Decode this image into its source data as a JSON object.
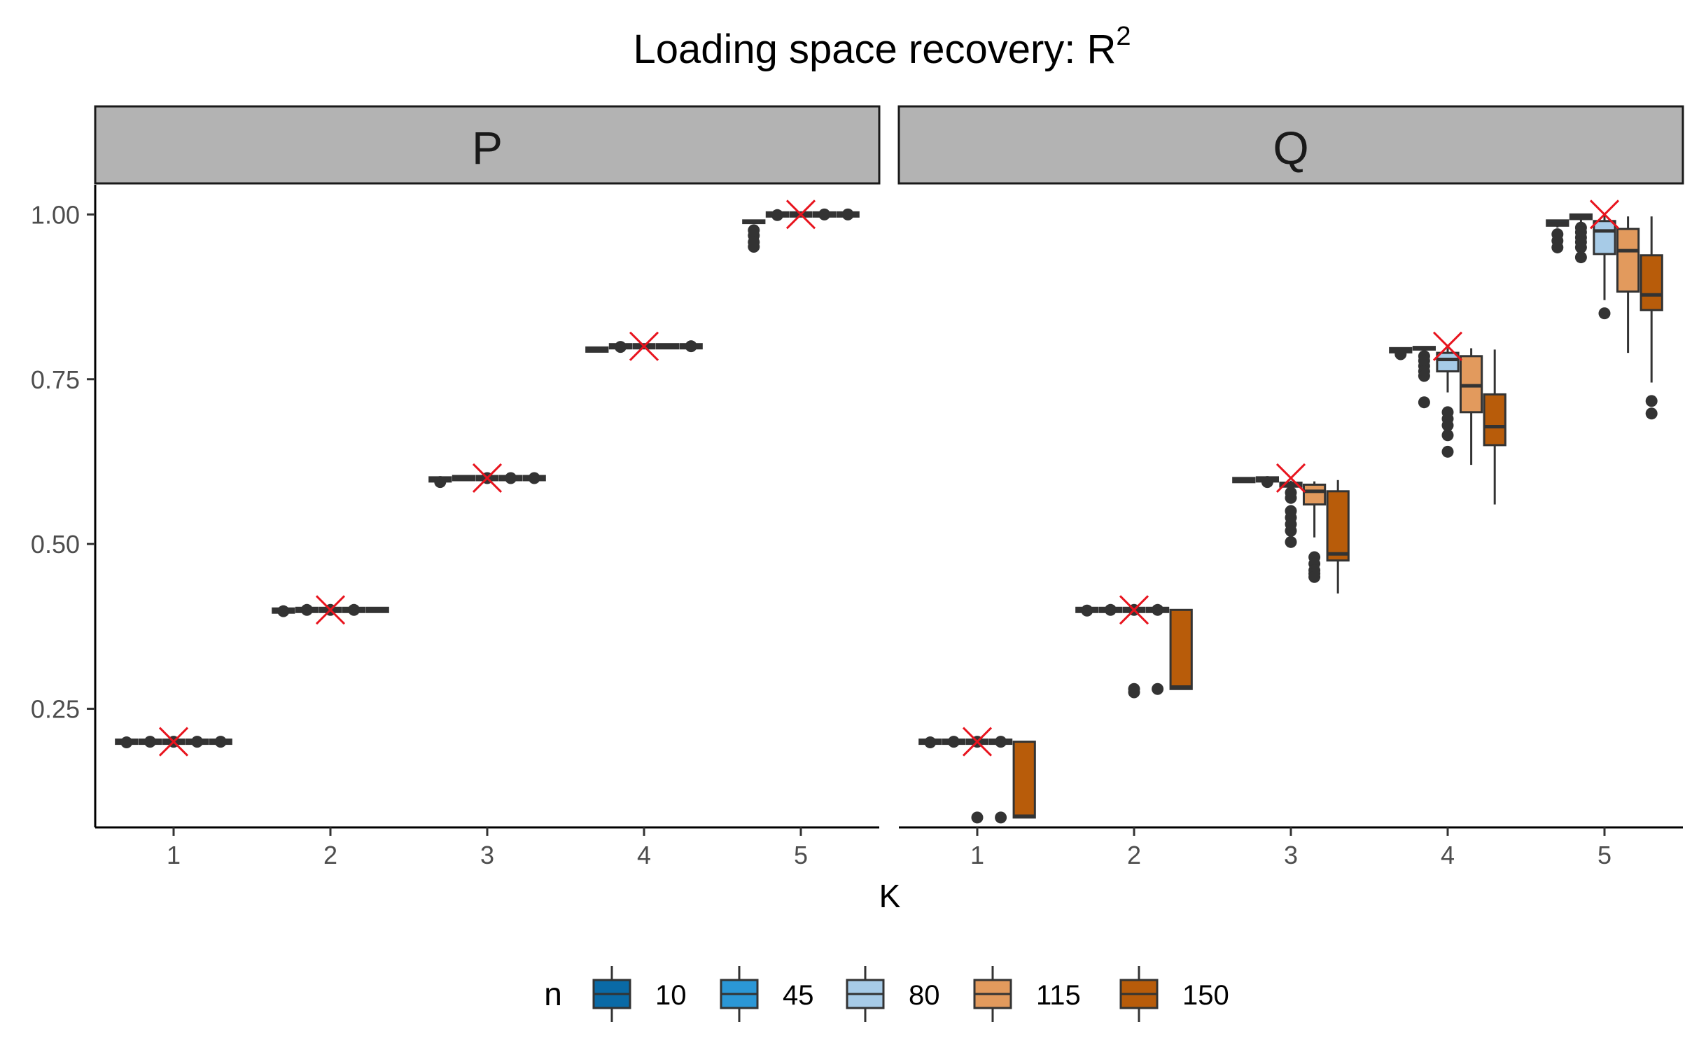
{
  "chart_data": {
    "type": "boxplot",
    "title": "Loading space recovery: R",
    "title_superscript": "2",
    "xlabel": "K",
    "ylabel": "",
    "ylim": [
      0.07,
      1.045
    ],
    "y_ticks": [
      0.25,
      0.5,
      0.75,
      1.0
    ],
    "y_tick_labels": [
      "0.25",
      "0.50",
      "0.75",
      "1.00"
    ],
    "categories": [
      "1",
      "2",
      "3",
      "4",
      "5"
    ],
    "grid": false,
    "legend": {
      "title": "n",
      "position": "bottom",
      "entries": [
        {
          "label": "10",
          "color": "#0a6aa6"
        },
        {
          "label": "45",
          "color": "#2b97d6"
        },
        {
          "label": "80",
          "color": "#a7cbe7"
        },
        {
          "label": "115",
          "color": "#e29a5d"
        },
        {
          "label": "150",
          "color": "#b85c0a"
        }
      ]
    },
    "truth_marker": {
      "shape": "x",
      "color": "#e8141e"
    },
    "panels": [
      {
        "strip": "P",
        "truth": [
          {
            "k": "1",
            "value": 0.2
          },
          {
            "k": "2",
            "value": 0.4
          },
          {
            "k": "3",
            "value": 0.6
          },
          {
            "k": "4",
            "value": 0.8
          },
          {
            "k": "5",
            "value": 1.0
          }
        ],
        "boxes": [
          {
            "k": "1",
            "n": "10",
            "q1": 0.199,
            "median": 0.2,
            "q3": 0.201,
            "whisker_low": 0.199,
            "whisker_high": 0.201,
            "outliers": [
              0.199
            ]
          },
          {
            "k": "1",
            "n": "45",
            "q1": 0.199,
            "median": 0.2,
            "q3": 0.201,
            "whisker_low": 0.199,
            "whisker_high": 0.201,
            "outliers": [
              0.2
            ]
          },
          {
            "k": "1",
            "n": "80",
            "q1": 0.199,
            "median": 0.2,
            "q3": 0.201,
            "whisker_low": 0.199,
            "whisker_high": 0.201,
            "outliers": [
              0.2
            ]
          },
          {
            "k": "1",
            "n": "115",
            "q1": 0.199,
            "median": 0.2,
            "q3": 0.201,
            "whisker_low": 0.199,
            "whisker_high": 0.201,
            "outliers": [
              0.2
            ]
          },
          {
            "k": "1",
            "n": "150",
            "q1": 0.199,
            "median": 0.2,
            "q3": 0.201,
            "whisker_low": 0.199,
            "whisker_high": 0.201,
            "outliers": [
              0.2
            ]
          },
          {
            "k": "2",
            "n": "10",
            "q1": 0.398,
            "median": 0.399,
            "q3": 0.4,
            "whisker_low": 0.397,
            "whisker_high": 0.4,
            "outliers": [
              0.398
            ]
          },
          {
            "k": "2",
            "n": "45",
            "q1": 0.399,
            "median": 0.4,
            "q3": 0.401,
            "whisker_low": 0.398,
            "whisker_high": 0.401,
            "outliers": [
              0.4
            ]
          },
          {
            "k": "2",
            "n": "80",
            "q1": 0.399,
            "median": 0.4,
            "q3": 0.401,
            "whisker_low": 0.399,
            "whisker_high": 0.401,
            "outliers": [
              0.4
            ]
          },
          {
            "k": "2",
            "n": "115",
            "q1": 0.399,
            "median": 0.4,
            "q3": 0.401,
            "whisker_low": 0.399,
            "whisker_high": 0.401,
            "outliers": [
              0.4
            ]
          },
          {
            "k": "2",
            "n": "150",
            "q1": 0.399,
            "median": 0.4,
            "q3": 0.401,
            "whisker_low": 0.399,
            "whisker_high": 0.401,
            "outliers": []
          },
          {
            "k": "3",
            "n": "10",
            "q1": 0.597,
            "median": 0.598,
            "q3": 0.599,
            "whisker_low": 0.596,
            "whisker_high": 0.6,
            "outliers": [
              0.594
            ]
          },
          {
            "k": "3",
            "n": "45",
            "q1": 0.599,
            "median": 0.6,
            "q3": 0.601,
            "whisker_low": 0.598,
            "whisker_high": 0.601,
            "outliers": []
          },
          {
            "k": "3",
            "n": "80",
            "q1": 0.599,
            "median": 0.6,
            "q3": 0.601,
            "whisker_low": 0.599,
            "whisker_high": 0.601,
            "outliers": [
              0.6
            ]
          },
          {
            "k": "3",
            "n": "115",
            "q1": 0.599,
            "median": 0.6,
            "q3": 0.601,
            "whisker_low": 0.599,
            "whisker_high": 0.601,
            "outliers": [
              0.6
            ]
          },
          {
            "k": "3",
            "n": "150",
            "q1": 0.599,
            "median": 0.6,
            "q3": 0.601,
            "whisker_low": 0.599,
            "whisker_high": 0.601,
            "outliers": [
              0.6
            ]
          },
          {
            "k": "4",
            "n": "10",
            "q1": 0.794,
            "median": 0.795,
            "q3": 0.796,
            "whisker_low": 0.793,
            "whisker_high": 0.797,
            "outliers": []
          },
          {
            "k": "4",
            "n": "45",
            "q1": 0.799,
            "median": 0.8,
            "q3": 0.801,
            "whisker_low": 0.798,
            "whisker_high": 0.801,
            "outliers": [
              0.799
            ]
          },
          {
            "k": "4",
            "n": "80",
            "q1": 0.799,
            "median": 0.8,
            "q3": 0.801,
            "whisker_low": 0.799,
            "whisker_high": 0.801,
            "outliers": []
          },
          {
            "k": "4",
            "n": "115",
            "q1": 0.799,
            "median": 0.8,
            "q3": 0.801,
            "whisker_low": 0.799,
            "whisker_high": 0.801,
            "outliers": []
          },
          {
            "k": "4",
            "n": "150",
            "q1": 0.799,
            "median": 0.8,
            "q3": 0.801,
            "whisker_low": 0.799,
            "whisker_high": 0.801,
            "outliers": [
              0.8
            ]
          },
          {
            "k": "5",
            "n": "10",
            "q1": 0.987,
            "median": 0.989,
            "q3": 0.991,
            "whisker_low": 0.986,
            "whisker_high": 0.991,
            "outliers": [
              0.976,
              0.968,
              0.958,
              0.951
            ]
          },
          {
            "k": "5",
            "n": "45",
            "q1": 0.999,
            "median": 1.0,
            "q3": 1.001,
            "whisker_low": 0.999,
            "whisker_high": 1.001,
            "outliers": [
              0.999
            ]
          },
          {
            "k": "5",
            "n": "80",
            "q1": 0.999,
            "median": 1.0,
            "q3": 1.001,
            "whisker_low": 0.999,
            "whisker_high": 1.001,
            "outliers": []
          },
          {
            "k": "5",
            "n": "115",
            "q1": 0.999,
            "median": 1.0,
            "q3": 1.001,
            "whisker_low": 0.999,
            "whisker_high": 1.001,
            "outliers": [
              1.0
            ]
          },
          {
            "k": "5",
            "n": "150",
            "q1": 0.999,
            "median": 1.0,
            "q3": 1.001,
            "whisker_low": 0.999,
            "whisker_high": 1.001,
            "outliers": [
              1.0
            ]
          }
        ]
      },
      {
        "strip": "Q",
        "truth": [
          {
            "k": "1",
            "value": 0.2
          },
          {
            "k": "2",
            "value": 0.4
          },
          {
            "k": "3",
            "value": 0.6
          },
          {
            "k": "4",
            "value": 0.8
          },
          {
            "k": "5",
            "value": 1.0
          }
        ],
        "boxes": [
          {
            "k": "1",
            "n": "10",
            "q1": 0.199,
            "median": 0.2,
            "q3": 0.201,
            "whisker_low": 0.199,
            "whisker_high": 0.201,
            "outliers": [
              0.199
            ]
          },
          {
            "k": "1",
            "n": "45",
            "q1": 0.199,
            "median": 0.2,
            "q3": 0.201,
            "whisker_low": 0.199,
            "whisker_high": 0.201,
            "outliers": [
              0.2
            ]
          },
          {
            "k": "1",
            "n": "80",
            "q1": 0.199,
            "median": 0.2,
            "q3": 0.201,
            "whisker_low": 0.199,
            "whisker_high": 0.201,
            "outliers": [
              0.2,
              0.085
            ]
          },
          {
            "k": "1",
            "n": "115",
            "q1": 0.199,
            "median": 0.2,
            "q3": 0.201,
            "whisker_low": 0.199,
            "whisker_high": 0.201,
            "outliers": [
              0.2,
              0.085
            ]
          },
          {
            "k": "1",
            "n": "150",
            "q1": 0.085,
            "median": 0.087,
            "q3": 0.2,
            "whisker_low": 0.085,
            "whisker_high": 0.2,
            "outliers": []
          },
          {
            "k": "2",
            "n": "10",
            "q1": 0.399,
            "median": 0.4,
            "q3": 0.401,
            "whisker_low": 0.398,
            "whisker_high": 0.401,
            "outliers": [
              0.399
            ]
          },
          {
            "k": "2",
            "n": "45",
            "q1": 0.399,
            "median": 0.4,
            "q3": 0.401,
            "whisker_low": 0.398,
            "whisker_high": 0.401,
            "outliers": [
              0.4
            ]
          },
          {
            "k": "2",
            "n": "80",
            "q1": 0.399,
            "median": 0.4,
            "q3": 0.401,
            "whisker_low": 0.398,
            "whisker_high": 0.401,
            "outliers": [
              0.4,
              0.28,
              0.275
            ]
          },
          {
            "k": "2",
            "n": "115",
            "q1": 0.399,
            "median": 0.4,
            "q3": 0.401,
            "whisker_low": 0.398,
            "whisker_high": 0.401,
            "outliers": [
              0.4,
              0.28
            ]
          },
          {
            "k": "2",
            "n": "150",
            "q1": 0.28,
            "median": 0.283,
            "q3": 0.4,
            "whisker_low": 0.28,
            "whisker_high": 0.4,
            "outliers": []
          },
          {
            "k": "3",
            "n": "10",
            "q1": 0.596,
            "median": 0.597,
            "q3": 0.598,
            "whisker_low": 0.595,
            "whisker_high": 0.599,
            "outliers": []
          },
          {
            "k": "3",
            "n": "45",
            "q1": 0.597,
            "median": 0.598,
            "q3": 0.599,
            "whisker_low": 0.596,
            "whisker_high": 0.6,
            "outliers": [
              0.594
            ]
          },
          {
            "k": "3",
            "n": "80",
            "q1": 0.587,
            "median": 0.59,
            "q3": 0.593,
            "whisker_low": 0.582,
            "whisker_high": 0.596,
            "outliers": [
              0.578,
              0.57,
              0.55,
              0.54,
              0.53,
              0.52,
              0.503
            ]
          },
          {
            "k": "3",
            "n": "115",
            "q1": 0.56,
            "median": 0.58,
            "q3": 0.59,
            "whisker_low": 0.51,
            "whisker_high": 0.595,
            "outliers": [
              0.48,
              0.47,
              0.46,
              0.455,
              0.45
            ]
          },
          {
            "k": "3",
            "n": "150",
            "q1": 0.475,
            "median": 0.485,
            "q3": 0.58,
            "whisker_low": 0.425,
            "whisker_high": 0.597,
            "outliers": []
          },
          {
            "k": "4",
            "n": "10",
            "q1": 0.793,
            "median": 0.794,
            "q3": 0.796,
            "whisker_low": 0.792,
            "whisker_high": 0.797,
            "outliers": [
              0.788
            ]
          },
          {
            "k": "4",
            "n": "45",
            "q1": 0.795,
            "median": 0.797,
            "q3": 0.799,
            "whisker_low": 0.793,
            "whisker_high": 0.8,
            "outliers": [
              0.785,
              0.778,
              0.77,
              0.762,
              0.755,
              0.715
            ]
          },
          {
            "k": "4",
            "n": "80",
            "q1": 0.762,
            "median": 0.78,
            "q3": 0.79,
            "whisker_low": 0.73,
            "whisker_high": 0.797,
            "outliers": [
              0.7,
              0.69,
              0.68,
              0.665,
              0.64
            ]
          },
          {
            "k": "4",
            "n": "115",
            "q1": 0.7,
            "median": 0.74,
            "q3": 0.785,
            "whisker_low": 0.62,
            "whisker_high": 0.797,
            "outliers": []
          },
          {
            "k": "4",
            "n": "150",
            "q1": 0.65,
            "median": 0.678,
            "q3": 0.727,
            "whisker_low": 0.56,
            "whisker_high": 0.795,
            "outliers": []
          },
          {
            "k": "5",
            "n": "10",
            "q1": 0.983,
            "median": 0.987,
            "q3": 0.991,
            "whisker_low": 0.98,
            "whisker_high": 0.992,
            "outliers": [
              0.97,
              0.96,
              0.95
            ]
          },
          {
            "k": "5",
            "n": "45",
            "q1": 0.993,
            "median": 0.997,
            "q3": 1.0,
            "whisker_low": 0.985,
            "whisker_high": 1.0,
            "outliers": [
              0.98,
              0.973,
              0.965,
              0.958,
              0.95,
              0.935
            ]
          },
          {
            "k": "5",
            "n": "80",
            "q1": 0.94,
            "median": 0.975,
            "q3": 0.99,
            "whisker_low": 0.87,
            "whisker_high": 0.999,
            "outliers": [
              0.85
            ]
          },
          {
            "k": "5",
            "n": "115",
            "q1": 0.883,
            "median": 0.945,
            "q3": 0.978,
            "whisker_low": 0.79,
            "whisker_high": 0.997,
            "outliers": []
          },
          {
            "k": "5",
            "n": "150",
            "q1": 0.855,
            "median": 0.878,
            "q3": 0.938,
            "whisker_low": 0.745,
            "whisker_high": 0.997,
            "outliers": [
              0.717,
              0.698
            ]
          }
        ]
      }
    ]
  }
}
